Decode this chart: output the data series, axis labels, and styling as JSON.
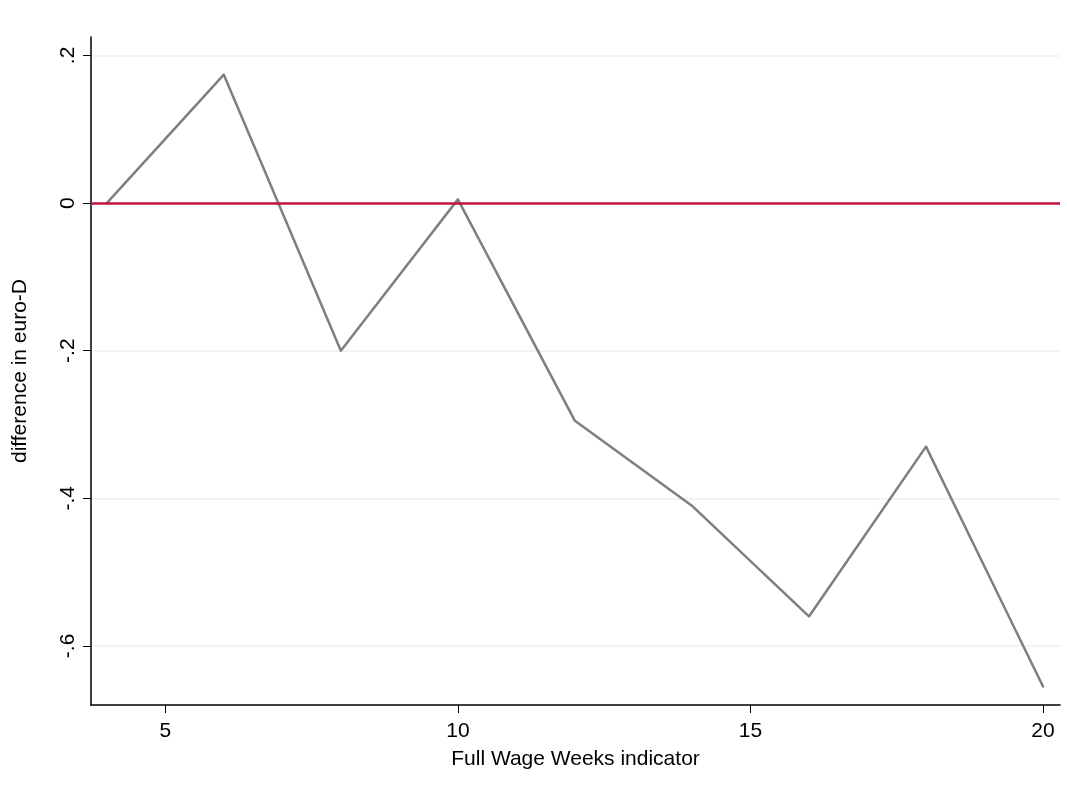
{
  "chart_data": {
    "type": "line",
    "xlabel": "Full Wage Weeks indicator",
    "ylabel": "difference in euro-D",
    "x": [
      4,
      6,
      8,
      10,
      12,
      14,
      16,
      18,
      20
    ],
    "series": [
      {
        "color": "#7f7f7f",
        "values": [
          0,
          0.174,
          -0.2,
          0.005,
          -0.295,
          -0.41,
          -0.56,
          -0.33,
          -0.655
        ]
      }
    ],
    "xlim": [
      3.73,
      20.29
    ],
    "ylim": [
      -0.68,
      0.225
    ],
    "xticks": [
      5,
      10,
      15,
      20
    ],
    "yticks": [
      {
        "value": -0.6,
        "label": "-.6"
      },
      {
        "value": -0.4,
        "label": "-.4"
      },
      {
        "value": -0.2,
        "label": "-.2"
      },
      0,
      {
        "value": 0.2,
        "label": ".2"
      }
    ],
    "ref_lines": [
      {
        "axis": "y",
        "value": 0,
        "color": "#c0143c"
      }
    ],
    "grid": "y",
    "marker": "none",
    "line_style": "solid"
  }
}
